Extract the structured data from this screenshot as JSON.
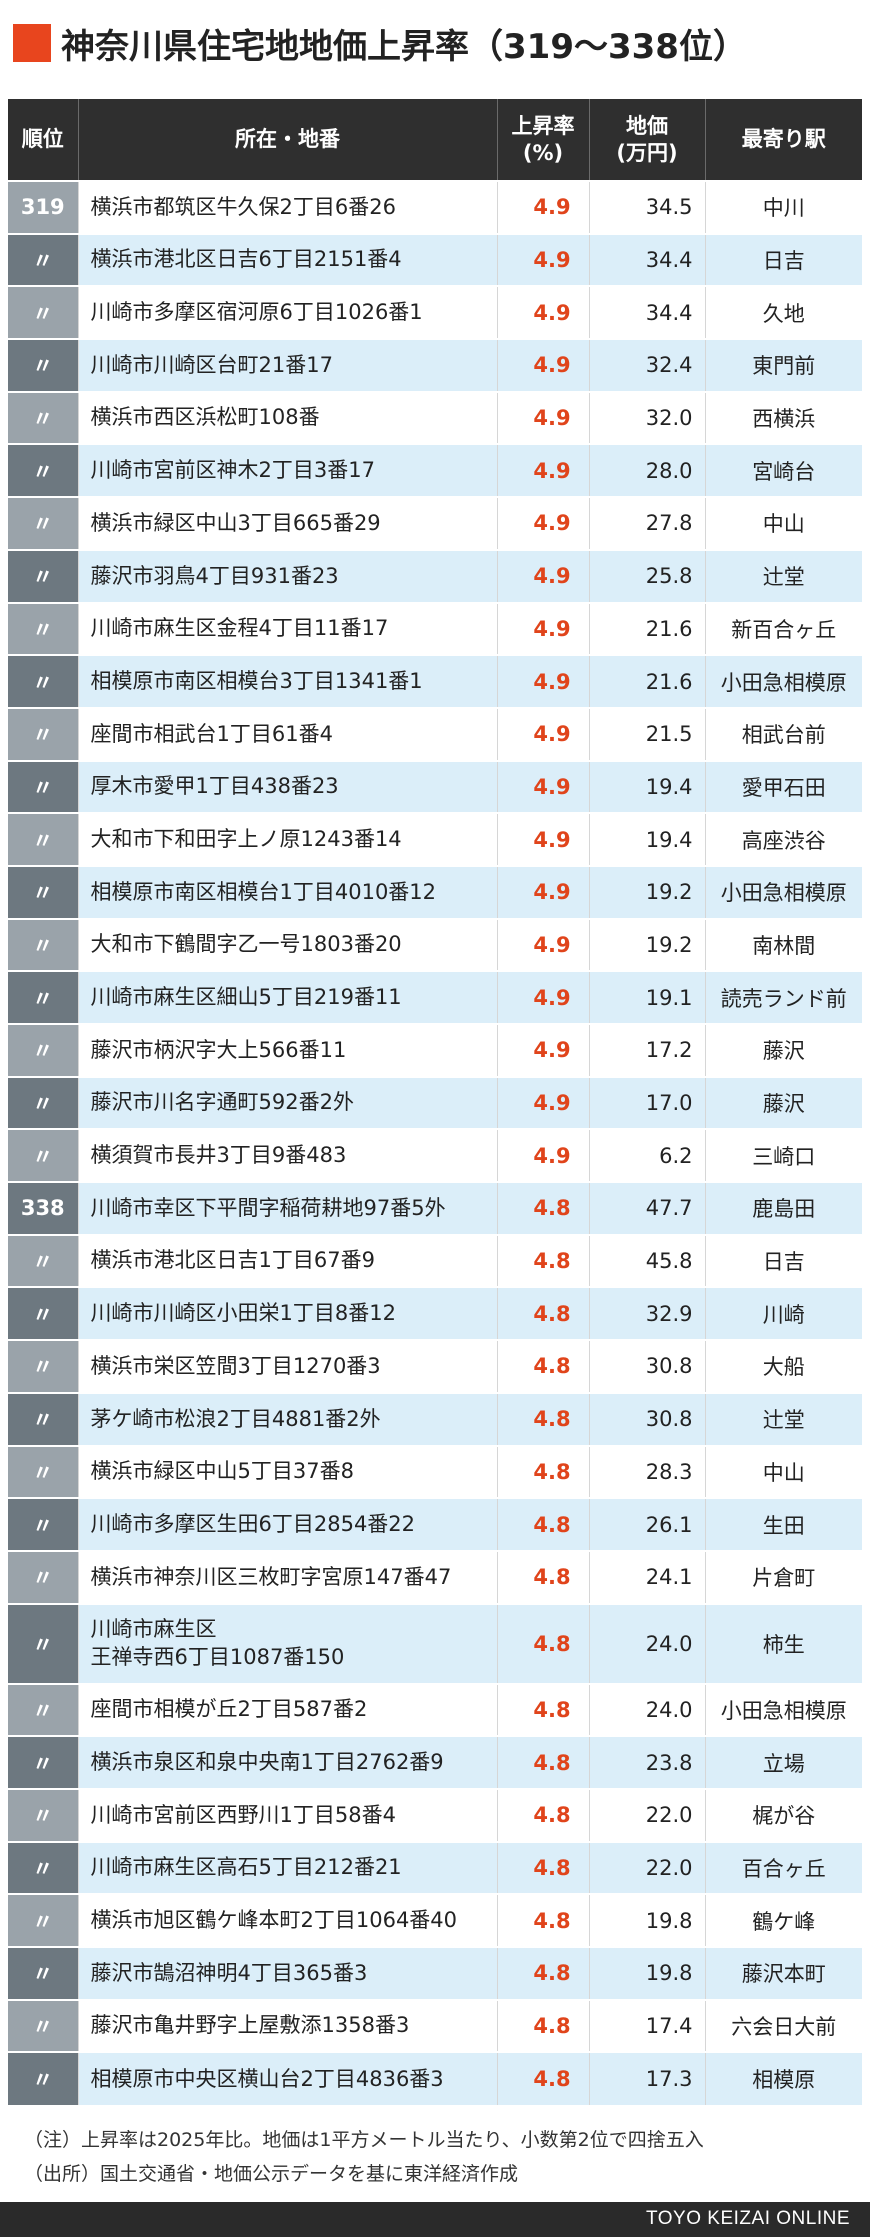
{
  "title": "神奈川県住宅地地価上昇率（319〜338位）",
  "accent_color": "#e8451e",
  "header": {
    "rank": "順位",
    "location": "所在・地番",
    "rate": "上昇率\n(%)",
    "price": "地価\n(万円)",
    "station": "最寄り駅"
  },
  "rows": [
    {
      "rank": "319",
      "location": "横浜市都筑区牛久保2丁目6番26",
      "rate": "4.9",
      "price": "34.5",
      "station": "中川"
    },
    {
      "rank": "〃",
      "location": "横浜市港北区日吉6丁目2151番4",
      "rate": "4.9",
      "price": "34.4",
      "station": "日吉"
    },
    {
      "rank": "〃",
      "location": "川崎市多摩区宿河原6丁目1026番1",
      "rate": "4.9",
      "price": "34.4",
      "station": "久地"
    },
    {
      "rank": "〃",
      "location": "川崎市川崎区台町21番17",
      "rate": "4.9",
      "price": "32.4",
      "station": "東門前"
    },
    {
      "rank": "〃",
      "location": "横浜市西区浜松町108番",
      "rate": "4.9",
      "price": "32.0",
      "station": "西横浜"
    },
    {
      "rank": "〃",
      "location": "川崎市宮前区神木2丁目3番17",
      "rate": "4.9",
      "price": "28.0",
      "station": "宮崎台"
    },
    {
      "rank": "〃",
      "location": "横浜市緑区中山3丁目665番29",
      "rate": "4.9",
      "price": "27.8",
      "station": "中山"
    },
    {
      "rank": "〃",
      "location": "藤沢市羽鳥4丁目931番23",
      "rate": "4.9",
      "price": "25.8",
      "station": "辻堂"
    },
    {
      "rank": "〃",
      "location": "川崎市麻生区金程4丁目11番17",
      "rate": "4.9",
      "price": "21.6",
      "station": "新百合ヶ丘"
    },
    {
      "rank": "〃",
      "location": "相模原市南区相模台3丁目1341番1",
      "rate": "4.9",
      "price": "21.6",
      "station": "小田急相模原"
    },
    {
      "rank": "〃",
      "location": "座間市相武台1丁目61番4",
      "rate": "4.9",
      "price": "21.5",
      "station": "相武台前"
    },
    {
      "rank": "〃",
      "location": "厚木市愛甲1丁目438番23",
      "rate": "4.9",
      "price": "19.4",
      "station": "愛甲石田"
    },
    {
      "rank": "〃",
      "location": "大和市下和田字上ノ原1243番14",
      "rate": "4.9",
      "price": "19.4",
      "station": "高座渋谷"
    },
    {
      "rank": "〃",
      "location": "相模原市南区相模台1丁目4010番12",
      "rate": "4.9",
      "price": "19.2",
      "station": "小田急相模原"
    },
    {
      "rank": "〃",
      "location": "大和市下鶴間字乙一号1803番20",
      "rate": "4.9",
      "price": "19.2",
      "station": "南林間"
    },
    {
      "rank": "〃",
      "location": "川崎市麻生区細山5丁目219番11",
      "rate": "4.9",
      "price": "19.1",
      "station": "読売ランド前"
    },
    {
      "rank": "〃",
      "location": "藤沢市柄沢字大上566番11",
      "rate": "4.9",
      "price": "17.2",
      "station": "藤沢"
    },
    {
      "rank": "〃",
      "location": "藤沢市川名字通町592番2外",
      "rate": "4.9",
      "price": "17.0",
      "station": "藤沢"
    },
    {
      "rank": "〃",
      "location": "横須賀市長井3丁目9番483",
      "rate": "4.9",
      "price": "6.2",
      "station": "三崎口"
    },
    {
      "rank": "338",
      "location": "川崎市幸区下平間字稲荷耕地97番5外",
      "rate": "4.8",
      "price": "47.7",
      "station": "鹿島田"
    },
    {
      "rank": "〃",
      "location": "横浜市港北区日吉1丁目67番9",
      "rate": "4.8",
      "price": "45.8",
      "station": "日吉"
    },
    {
      "rank": "〃",
      "location": "川崎市川崎区小田栄1丁目8番12",
      "rate": "4.8",
      "price": "32.9",
      "station": "川崎"
    },
    {
      "rank": "〃",
      "location": "横浜市栄区笠間3丁目1270番3",
      "rate": "4.8",
      "price": "30.8",
      "station": "大船"
    },
    {
      "rank": "〃",
      "location": "茅ケ崎市松浪2丁目4881番2外",
      "rate": "4.8",
      "price": "30.8",
      "station": "辻堂"
    },
    {
      "rank": "〃",
      "location": "横浜市緑区中山5丁目37番8",
      "rate": "4.8",
      "price": "28.3",
      "station": "中山"
    },
    {
      "rank": "〃",
      "location": "川崎市多摩区生田6丁目2854番22",
      "rate": "4.8",
      "price": "26.1",
      "station": "生田"
    },
    {
      "rank": "〃",
      "location": "横浜市神奈川区三枚町字宮原147番47",
      "rate": "4.8",
      "price": "24.1",
      "station": "片倉町"
    },
    {
      "rank": "〃",
      "location": "川崎市麻生区\n王禅寺西6丁目1087番150",
      "rate": "4.8",
      "price": "24.0",
      "station": "柿生"
    },
    {
      "rank": "〃",
      "location": "座間市相模が丘2丁目587番2",
      "rate": "4.8",
      "price": "24.0",
      "station": "小田急相模原"
    },
    {
      "rank": "〃",
      "location": "横浜市泉区和泉中央南1丁目2762番9",
      "rate": "4.8",
      "price": "23.8",
      "station": "立場"
    },
    {
      "rank": "〃",
      "location": "川崎市宮前区西野川1丁目58番4",
      "rate": "4.8",
      "price": "22.0",
      "station": "梶が谷"
    },
    {
      "rank": "〃",
      "location": "川崎市麻生区高石5丁目212番21",
      "rate": "4.8",
      "price": "22.0",
      "station": "百合ヶ丘"
    },
    {
      "rank": "〃",
      "location": "横浜市旭区鶴ケ峰本町2丁目1064番40",
      "rate": "4.8",
      "price": "19.8",
      "station": "鶴ケ峰"
    },
    {
      "rank": "〃",
      "location": "藤沢市鵠沼神明4丁目365番3",
      "rate": "4.8",
      "price": "19.8",
      "station": "藤沢本町"
    },
    {
      "rank": "〃",
      "location": "藤沢市亀井野字上屋敷添1358番3",
      "rate": "4.8",
      "price": "17.4",
      "station": "六会日大前"
    },
    {
      "rank": "〃",
      "location": "相模原市中央区横山台2丁目4836番3",
      "rate": "4.8",
      "price": "17.3",
      "station": "相模原"
    }
  ],
  "notes": [
    "（注）上昇率は2025年比。地価は1平方メートル当たり、小数第2位で四捨五入",
    "（出所）国土交通省・地価公示データを基に東洋経済作成"
  ],
  "footer": "TOYO KEIZAI ONLINE"
}
